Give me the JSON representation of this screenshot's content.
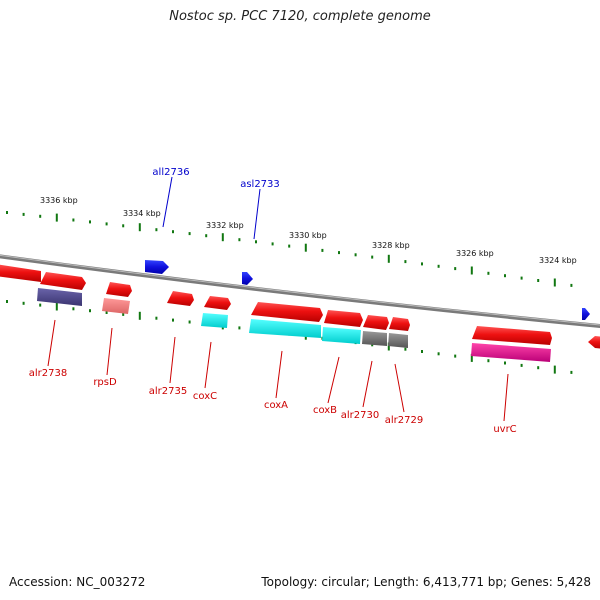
{
  "header": {
    "title": "Nostoc sp. PCC 7120, complete genome"
  },
  "footer": {
    "accession": "Accession: NC_003272",
    "summary": "Topology: circular; Length: 6,413,771 bp; Genes: 5,428"
  },
  "colors": {
    "plus_gene": "#ee1111",
    "minus_gene": "#1010dd",
    "backbone": "#888888",
    "tick": "#117711",
    "ruler_label": "#111111",
    "label_plus": "#cc0000",
    "label_minus": "#0000cc",
    "cds_purple": "#4a4488",
    "cds_pink": "#ee7777",
    "cds_cyan": "#11dddd",
    "cds_gray": "#777777",
    "cds_magenta": "#dd1188"
  },
  "ruler": {
    "labels": [
      "3336 kbp",
      "3334 kbp",
      "3332 kbp",
      "3330 kbp",
      "3328 kbp",
      "3326 kbp",
      "3324 kbp"
    ]
  },
  "genes_minus": [
    {
      "name": "all2736",
      "strand": "minus"
    },
    {
      "name": "asl2733",
      "strand": "minus"
    }
  ],
  "genes_plus": [
    {
      "name": "alr2738",
      "strand": "plus"
    },
    {
      "name": "rpsD",
      "strand": "plus"
    },
    {
      "name": "alr2735",
      "strand": "plus"
    },
    {
      "name": "coxC",
      "strand": "plus"
    },
    {
      "name": "coxA",
      "strand": "plus"
    },
    {
      "name": "coxB",
      "strand": "plus"
    },
    {
      "name": "alr2730",
      "strand": "plus"
    },
    {
      "name": "alr2729",
      "strand": "plus"
    },
    {
      "name": "uvrC",
      "strand": "plus"
    }
  ]
}
